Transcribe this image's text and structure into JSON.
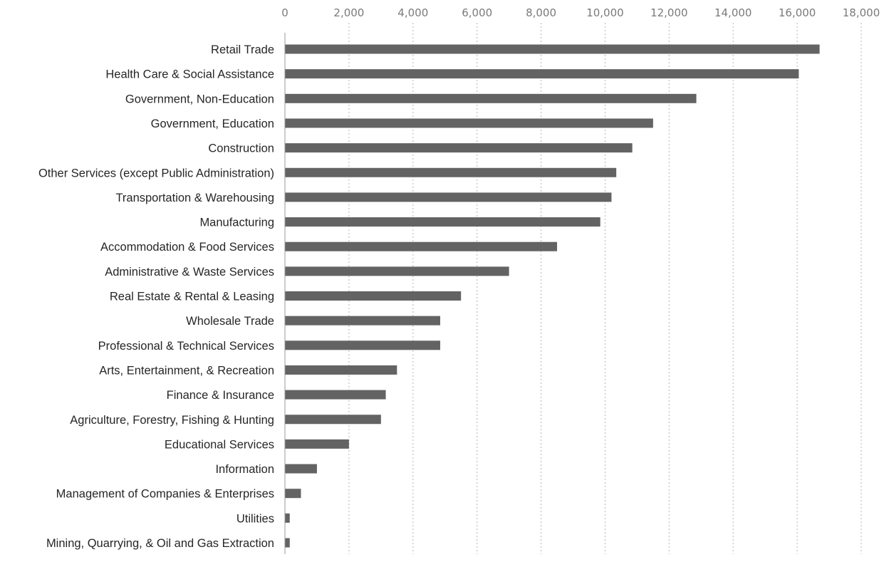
{
  "chart_data": {
    "type": "bar",
    "orientation": "horizontal",
    "title": "",
    "xlabel": "",
    "ylabel": "",
    "xlim": [
      0,
      18000
    ],
    "x_ticks": [
      0,
      2000,
      4000,
      6000,
      8000,
      10000,
      12000,
      14000,
      16000,
      18000
    ],
    "x_tick_labels": [
      "0",
      "2,000",
      "4,000",
      "6,000",
      "8,000",
      "10,000",
      "12,000",
      "14,000",
      "16,000",
      "18,000"
    ],
    "x_axis_position": "top",
    "grid": "vertical dashed",
    "legend": "none",
    "bar_color": "#636363",
    "categories": [
      "Retail Trade",
      "Health Care & Social Assistance",
      "Government, Non-Education",
      "Government, Education",
      "Construction",
      "Other Services (except Public Administration)",
      "Transportation & Warehousing",
      "Manufacturing",
      "Accommodation & Food Services",
      "Administrative & Waste Services",
      "Real Estate & Rental & Leasing",
      "Wholesale Trade",
      "Professional & Technical Services",
      "Arts, Entertainment, & Recreation",
      "Finance & Insurance",
      "Agriculture, Forestry, Fishing & Hunting",
      "Educational Services",
      "Information",
      "Management of Companies & Enterprises",
      "Utilities",
      "Mining, Quarrying, & Oil and Gas Extraction"
    ],
    "values": [
      16700,
      16050,
      12850,
      11500,
      10850,
      10350,
      10200,
      9850,
      8500,
      7000,
      5500,
      4850,
      4850,
      3500,
      3150,
      3000,
      2000,
      1000,
      500,
      150,
      150
    ]
  }
}
